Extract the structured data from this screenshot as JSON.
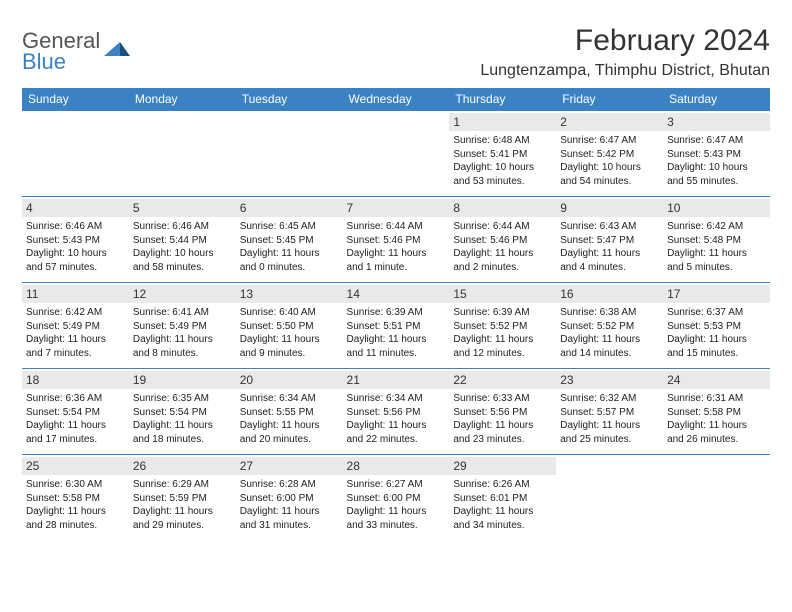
{
  "logo": {
    "text_top": "General",
    "text_bottom": "Blue",
    "top_color": "#555555",
    "bottom_color": "#3b82c4"
  },
  "title": "February 2024",
  "location": "Lungtenzampa, Thimphu District, Bhutan",
  "header_bg": "#3b82c4",
  "header_text_color": "#ffffff",
  "rule_color": "#3b82c4",
  "daynum_bg": "#e9e9e9",
  "days_of_week": [
    "Sunday",
    "Monday",
    "Tuesday",
    "Wednesday",
    "Thursday",
    "Friday",
    "Saturday"
  ],
  "weeks": [
    [
      {
        "num": "",
        "sunrise": "",
        "sunset": "",
        "daylight": ""
      },
      {
        "num": "",
        "sunrise": "",
        "sunset": "",
        "daylight": ""
      },
      {
        "num": "",
        "sunrise": "",
        "sunset": "",
        "daylight": ""
      },
      {
        "num": "",
        "sunrise": "",
        "sunset": "",
        "daylight": ""
      },
      {
        "num": "1",
        "sunrise": "Sunrise: 6:48 AM",
        "sunset": "Sunset: 5:41 PM",
        "daylight": "Daylight: 10 hours and 53 minutes."
      },
      {
        "num": "2",
        "sunrise": "Sunrise: 6:47 AM",
        "sunset": "Sunset: 5:42 PM",
        "daylight": "Daylight: 10 hours and 54 minutes."
      },
      {
        "num": "3",
        "sunrise": "Sunrise: 6:47 AM",
        "sunset": "Sunset: 5:43 PM",
        "daylight": "Daylight: 10 hours and 55 minutes."
      }
    ],
    [
      {
        "num": "4",
        "sunrise": "Sunrise: 6:46 AM",
        "sunset": "Sunset: 5:43 PM",
        "daylight": "Daylight: 10 hours and 57 minutes."
      },
      {
        "num": "5",
        "sunrise": "Sunrise: 6:46 AM",
        "sunset": "Sunset: 5:44 PM",
        "daylight": "Daylight: 10 hours and 58 minutes."
      },
      {
        "num": "6",
        "sunrise": "Sunrise: 6:45 AM",
        "sunset": "Sunset: 5:45 PM",
        "daylight": "Daylight: 11 hours and 0 minutes."
      },
      {
        "num": "7",
        "sunrise": "Sunrise: 6:44 AM",
        "sunset": "Sunset: 5:46 PM",
        "daylight": "Daylight: 11 hours and 1 minute."
      },
      {
        "num": "8",
        "sunrise": "Sunrise: 6:44 AM",
        "sunset": "Sunset: 5:46 PM",
        "daylight": "Daylight: 11 hours and 2 minutes."
      },
      {
        "num": "9",
        "sunrise": "Sunrise: 6:43 AM",
        "sunset": "Sunset: 5:47 PM",
        "daylight": "Daylight: 11 hours and 4 minutes."
      },
      {
        "num": "10",
        "sunrise": "Sunrise: 6:42 AM",
        "sunset": "Sunset: 5:48 PM",
        "daylight": "Daylight: 11 hours and 5 minutes."
      }
    ],
    [
      {
        "num": "11",
        "sunrise": "Sunrise: 6:42 AM",
        "sunset": "Sunset: 5:49 PM",
        "daylight": "Daylight: 11 hours and 7 minutes."
      },
      {
        "num": "12",
        "sunrise": "Sunrise: 6:41 AM",
        "sunset": "Sunset: 5:49 PM",
        "daylight": "Daylight: 11 hours and 8 minutes."
      },
      {
        "num": "13",
        "sunrise": "Sunrise: 6:40 AM",
        "sunset": "Sunset: 5:50 PM",
        "daylight": "Daylight: 11 hours and 9 minutes."
      },
      {
        "num": "14",
        "sunrise": "Sunrise: 6:39 AM",
        "sunset": "Sunset: 5:51 PM",
        "daylight": "Daylight: 11 hours and 11 minutes."
      },
      {
        "num": "15",
        "sunrise": "Sunrise: 6:39 AM",
        "sunset": "Sunset: 5:52 PM",
        "daylight": "Daylight: 11 hours and 12 minutes."
      },
      {
        "num": "16",
        "sunrise": "Sunrise: 6:38 AM",
        "sunset": "Sunset: 5:52 PM",
        "daylight": "Daylight: 11 hours and 14 minutes."
      },
      {
        "num": "17",
        "sunrise": "Sunrise: 6:37 AM",
        "sunset": "Sunset: 5:53 PM",
        "daylight": "Daylight: 11 hours and 15 minutes."
      }
    ],
    [
      {
        "num": "18",
        "sunrise": "Sunrise: 6:36 AM",
        "sunset": "Sunset: 5:54 PM",
        "daylight": "Daylight: 11 hours and 17 minutes."
      },
      {
        "num": "19",
        "sunrise": "Sunrise: 6:35 AM",
        "sunset": "Sunset: 5:54 PM",
        "daylight": "Daylight: 11 hours and 18 minutes."
      },
      {
        "num": "20",
        "sunrise": "Sunrise: 6:34 AM",
        "sunset": "Sunset: 5:55 PM",
        "daylight": "Daylight: 11 hours and 20 minutes."
      },
      {
        "num": "21",
        "sunrise": "Sunrise: 6:34 AM",
        "sunset": "Sunset: 5:56 PM",
        "daylight": "Daylight: 11 hours and 22 minutes."
      },
      {
        "num": "22",
        "sunrise": "Sunrise: 6:33 AM",
        "sunset": "Sunset: 5:56 PM",
        "daylight": "Daylight: 11 hours and 23 minutes."
      },
      {
        "num": "23",
        "sunrise": "Sunrise: 6:32 AM",
        "sunset": "Sunset: 5:57 PM",
        "daylight": "Daylight: 11 hours and 25 minutes."
      },
      {
        "num": "24",
        "sunrise": "Sunrise: 6:31 AM",
        "sunset": "Sunset: 5:58 PM",
        "daylight": "Daylight: 11 hours and 26 minutes."
      }
    ],
    [
      {
        "num": "25",
        "sunrise": "Sunrise: 6:30 AM",
        "sunset": "Sunset: 5:58 PM",
        "daylight": "Daylight: 11 hours and 28 minutes."
      },
      {
        "num": "26",
        "sunrise": "Sunrise: 6:29 AM",
        "sunset": "Sunset: 5:59 PM",
        "daylight": "Daylight: 11 hours and 29 minutes."
      },
      {
        "num": "27",
        "sunrise": "Sunrise: 6:28 AM",
        "sunset": "Sunset: 6:00 PM",
        "daylight": "Daylight: 11 hours and 31 minutes."
      },
      {
        "num": "28",
        "sunrise": "Sunrise: 6:27 AM",
        "sunset": "Sunset: 6:00 PM",
        "daylight": "Daylight: 11 hours and 33 minutes."
      },
      {
        "num": "29",
        "sunrise": "Sunrise: 6:26 AM",
        "sunset": "Sunset: 6:01 PM",
        "daylight": "Daylight: 11 hours and 34 minutes."
      },
      {
        "num": "",
        "sunrise": "",
        "sunset": "",
        "daylight": ""
      },
      {
        "num": "",
        "sunrise": "",
        "sunset": "",
        "daylight": ""
      }
    ]
  ]
}
